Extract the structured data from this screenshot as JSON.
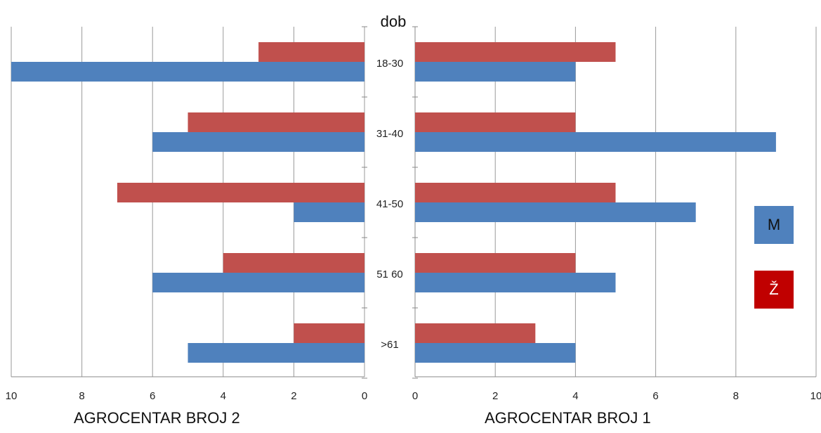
{
  "chart_data": {
    "type": "bar",
    "orientation": "horizontal",
    "title": "dob",
    "categories": [
      "18-30",
      "31-40",
      "41-50",
      "51 60",
      ">61"
    ],
    "xlim": [
      0,
      10
    ],
    "xticks": [
      "0",
      "2",
      "4",
      "6",
      "8",
      "10"
    ],
    "grid": true,
    "legend": "right",
    "panels": [
      {
        "name": "AGROCENTAR BROJ 2",
        "direction": "reversed",
        "series": [
          {
            "name": "Ž",
            "color": "#C0504D",
            "values": [
              3,
              5,
              7,
              4,
              2
            ]
          },
          {
            "name": "M",
            "color": "#4F81BD",
            "values": [
              10,
              6,
              2,
              6,
              5
            ]
          }
        ]
      },
      {
        "name": "AGROCENTAR BROJ 1",
        "direction": "normal",
        "series": [
          {
            "name": "Ž",
            "color": "#C0504D",
            "values": [
              5,
              4,
              5,
              4,
              3
            ]
          },
          {
            "name": "M",
            "color": "#4F81BD",
            "values": [
              4,
              9,
              7,
              5,
              4
            ]
          }
        ]
      }
    ],
    "legend_items": [
      {
        "label": "M",
        "color": "#4F81BD"
      },
      {
        "label": "Ž",
        "color": "#C00000"
      }
    ]
  }
}
